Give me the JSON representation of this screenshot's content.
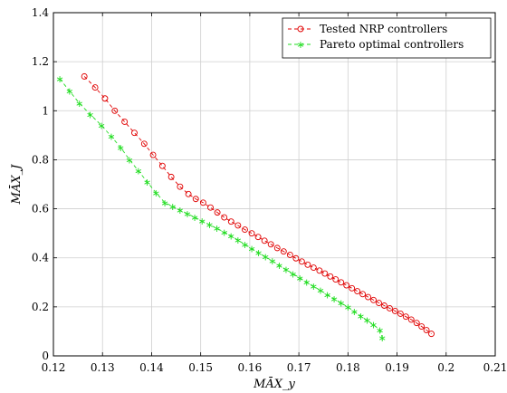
{
  "chart_data": {
    "type": "line",
    "xlabel": "MĀX_y",
    "ylabel": "MĀX_J",
    "xlim": [
      0.12,
      0.21
    ],
    "ylim": [
      0,
      1.4
    ],
    "xticks": [
      0.12,
      0.13,
      0.14,
      0.15,
      0.16,
      0.17,
      0.18,
      0.19,
      0.2,
      0.21
    ],
    "yticks": [
      0,
      0.2,
      0.4,
      0.6,
      0.8,
      1,
      1.2,
      1.4
    ],
    "xtick_labels": [
      "0.12",
      "0.13",
      "0.14",
      "0.15",
      "0.16",
      "0.17",
      "0.18",
      "0.19",
      "0.2",
      "0.21"
    ],
    "ytick_labels": [
      "0",
      "0.2",
      "0.4",
      "0.6",
      "0.8",
      "1",
      "1.2",
      "1.4"
    ],
    "grid": true,
    "legend_position": "top-right",
    "series": [
      {
        "name": "Tested NRP controllers",
        "color": "#e00000",
        "marker": "circle",
        "line_style": "dashed",
        "x": [
          0.1263,
          0.1285,
          0.1305,
          0.1325,
          0.1345,
          0.1365,
          0.1385,
          0.1403,
          0.1422,
          0.144,
          0.1458,
          0.1475,
          0.149,
          0.1505,
          0.152,
          0.1534,
          0.1548,
          0.1562,
          0.1576,
          0.159,
          0.1604,
          0.1617,
          0.163,
          0.1643,
          0.1656,
          0.1669,
          0.1682,
          0.1694,
          0.1706,
          0.1718,
          0.173,
          0.1742,
          0.1753,
          0.1764,
          0.1775,
          0.1786,
          0.1797,
          0.1808,
          0.1819,
          0.183,
          0.1841,
          0.1852,
          0.1863,
          0.1874,
          0.1885,
          0.1896,
          0.1907,
          0.1918,
          0.1929,
          0.194,
          0.195,
          0.196,
          0.197
        ],
        "y": [
          1.14,
          1.095,
          1.05,
          1.0,
          0.955,
          0.91,
          0.865,
          0.82,
          0.775,
          0.73,
          0.69,
          0.66,
          0.64,
          0.625,
          0.605,
          0.585,
          0.565,
          0.548,
          0.532,
          0.515,
          0.5,
          0.485,
          0.47,
          0.455,
          0.44,
          0.426,
          0.412,
          0.398,
          0.385,
          0.372,
          0.36,
          0.348,
          0.336,
          0.324,
          0.312,
          0.3,
          0.288,
          0.276,
          0.264,
          0.252,
          0.24,
          0.228,
          0.216,
          0.205,
          0.194,
          0.183,
          0.172,
          0.16,
          0.148,
          0.134,
          0.12,
          0.105,
          0.09
        ]
      },
      {
        "name": "Pareto optimal controllers",
        "color": "#22dd22",
        "marker": "star",
        "line_style": "dashed",
        "x": [
          0.1213,
          0.1233,
          0.1253,
          0.1275,
          0.1298,
          0.1318,
          0.1337,
          0.1355,
          0.1373,
          0.1391,
          0.1409,
          0.1427,
          0.1443,
          0.1458,
          0.1473,
          0.1488,
          0.1503,
          0.1518,
          0.1533,
          0.1548,
          0.1562,
          0.1576,
          0.159,
          0.1604,
          0.1618,
          0.1632,
          0.1646,
          0.166,
          0.1674,
          0.1688,
          0.1702,
          0.1716,
          0.173,
          0.1744,
          0.1758,
          0.1772,
          0.1786,
          0.18,
          0.1813,
          0.1826,
          0.1839,
          0.1852,
          0.1865,
          0.187
        ],
        "y": [
          1.13,
          1.08,
          1.03,
          0.985,
          0.94,
          0.895,
          0.85,
          0.8,
          0.755,
          0.71,
          0.665,
          0.625,
          0.61,
          0.595,
          0.58,
          0.565,
          0.55,
          0.535,
          0.52,
          0.505,
          0.49,
          0.472,
          0.455,
          0.438,
          0.421,
          0.404,
          0.387,
          0.37,
          0.352,
          0.335,
          0.318,
          0.301,
          0.284,
          0.267,
          0.25,
          0.233,
          0.216,
          0.199,
          0.181,
          0.163,
          0.145,
          0.127,
          0.105,
          0.073
        ]
      }
    ]
  }
}
